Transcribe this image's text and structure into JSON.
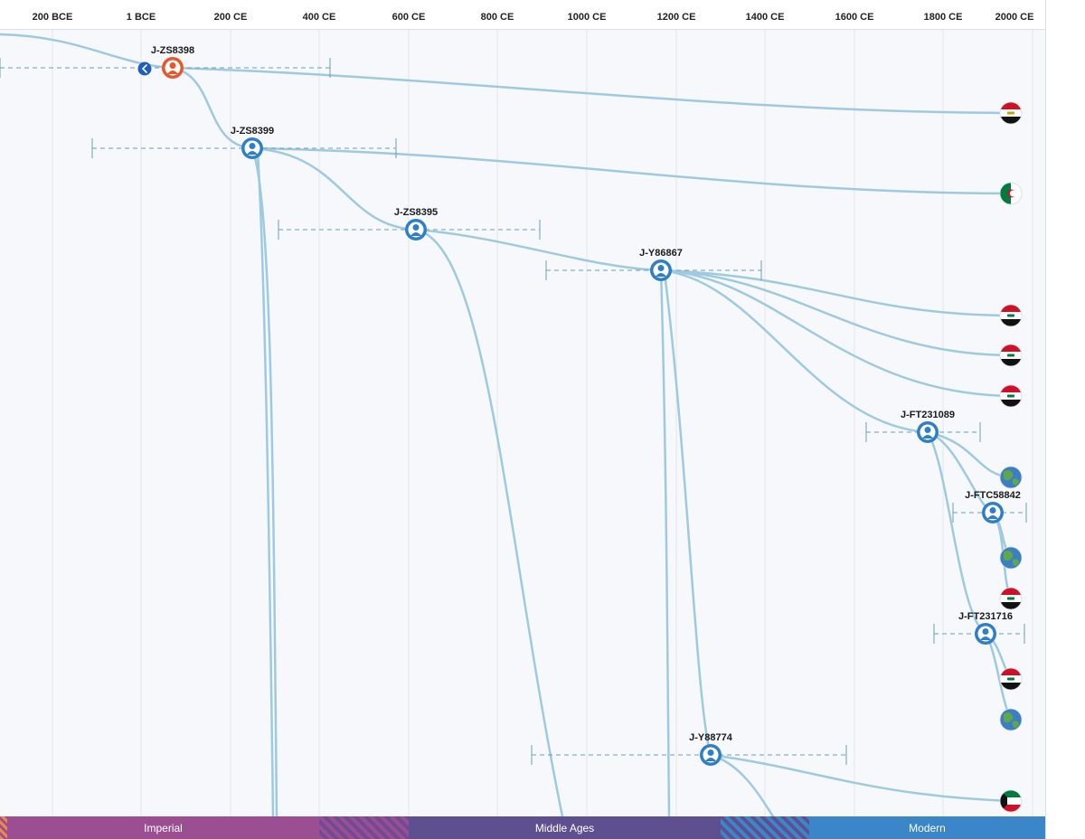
{
  "timeline": {
    "ticks": [
      "200 BCE",
      "1 BCE",
      "200 CE",
      "400 CE",
      "600 CE",
      "800 CE",
      "1000 CE",
      "1200 CE",
      "1400 CE",
      "1600 CE",
      "1800 CE",
      "2000 CE"
    ]
  },
  "eras": [
    {
      "name": "Imperial",
      "color": "#9b4f92"
    },
    {
      "name": "",
      "color": "#9b4f92"
    },
    {
      "name": "Middle Ages",
      "color": "#5e5090"
    },
    {
      "name": "",
      "color": "#4b5fa8"
    },
    {
      "name": "Modern",
      "color": "#3a86c8"
    }
  ],
  "nodes": [
    {
      "id": "n1",
      "label": "J-ZS8398",
      "color": "#e8562a"
    },
    {
      "id": "n2",
      "label": "J-ZS8399",
      "color": "#2e7fc7"
    },
    {
      "id": "n3",
      "label": "J-ZS8395",
      "color": "#2e7fc7"
    },
    {
      "id": "n4",
      "label": "J-Y86867",
      "color": "#2e7fc7"
    },
    {
      "id": "n5",
      "label": "J-FT231089",
      "color": "#2e7fc7"
    },
    {
      "id": "n6",
      "label": "J-FTC58842",
      "color": "#2e7fc7"
    },
    {
      "id": "n7",
      "label": "J-FT231716",
      "color": "#2e7fc7"
    },
    {
      "id": "n8",
      "label": "J-Y88774",
      "color": "#2e7fc7"
    }
  ],
  "leaves": [
    {
      "country": "Egypt",
      "icon": "egypt-flag-icon"
    },
    {
      "country": "Algeria",
      "icon": "algeria-flag-icon"
    },
    {
      "country": "Iraq",
      "icon": "iraq-flag-icon"
    },
    {
      "country": "Iraq",
      "icon": "iraq-flag-icon"
    },
    {
      "country": "Iraq",
      "icon": "iraq-flag-icon"
    },
    {
      "country": "Unknown",
      "icon": "globe-icon"
    },
    {
      "country": "Unknown",
      "icon": "globe-icon"
    },
    {
      "country": "Iraq",
      "icon": "iraq-flag-icon"
    },
    {
      "country": "Iraq",
      "icon": "iraq-flag-icon"
    },
    {
      "country": "Unknown",
      "icon": "globe-icon"
    },
    {
      "country": "Kuwait",
      "icon": "kuwait-flag-icon"
    }
  ],
  "colors": {
    "branch": "#9ecae1",
    "branch_dark": "#6aaed6",
    "range": "#6a9fb5",
    "red": "#ce1126",
    "green": "#007a3d",
    "black": "#111111"
  }
}
